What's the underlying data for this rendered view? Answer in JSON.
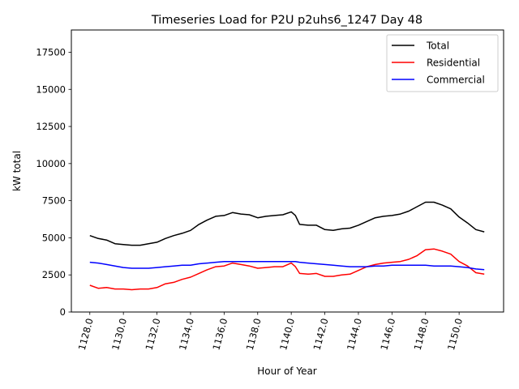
{
  "chart_data": {
    "type": "line",
    "title": "Timeseries Load for P2U p2uhs6_1247  Day 48",
    "xlabel": "Hour of Year",
    "ylabel": "kW total",
    "xlim": [
      1126.9,
      1152.65
    ],
    "ylim": [
      0,
      19000
    ],
    "grid": false,
    "legend_position": "top-right",
    "x_ticks": [
      1128,
      1130,
      1132,
      1134,
      1136,
      1138,
      1140,
      1142,
      1144,
      1146,
      1148,
      1150
    ],
    "x_tick_labels": [
      "1128.0",
      "1130.0",
      "1132.0",
      "1134.0",
      "1136.0",
      "1138.0",
      "1140.0",
      "1142.0",
      "1144.0",
      "1146.0",
      "1148.0",
      "1150.0"
    ],
    "y_ticks": [
      0,
      2500,
      5000,
      7500,
      10000,
      12500,
      15000,
      17500
    ],
    "y_tick_labels": [
      "0",
      "2500",
      "5000",
      "7500",
      "10000",
      "12500",
      "15000",
      "17500"
    ],
    "x": [
      1128.0,
      1128.5,
      1129.0,
      1129.5,
      1130.0,
      1130.5,
      1131.0,
      1131.5,
      1132.0,
      1132.5,
      1133.0,
      1133.5,
      1134.0,
      1134.5,
      1135.0,
      1135.5,
      1136.0,
      1136.5,
      1137.0,
      1137.5,
      1138.0,
      1138.5,
      1139.0,
      1139.5,
      1140.0,
      1140.25,
      1140.5,
      1141.0,
      1141.5,
      1142.0,
      1142.5,
      1143.0,
      1143.5,
      1144.0,
      1144.5,
      1145.0,
      1145.5,
      1146.0,
      1146.5,
      1147.0,
      1147.5,
      1148.0,
      1148.5,
      1149.0,
      1149.5,
      1150.0,
      1150.5,
      1151.0,
      1151.5
    ],
    "series": [
      {
        "name": "Total",
        "color": "#000000",
        "values": [
          5150,
          4950,
          4850,
          4600,
          4550,
          4500,
          4500,
          4600,
          4700,
          4950,
          5150,
          5300,
          5500,
          5900,
          6200,
          6450,
          6500,
          6700,
          6600,
          6550,
          6350,
          6450,
          6500,
          6550,
          6750,
          6500,
          5900,
          5850,
          5850,
          5550,
          5500,
          5600,
          5650,
          5850,
          6100,
          6350,
          6450,
          6500,
          6600,
          6800,
          7100,
          7400,
          7400,
          7200,
          6950,
          6400,
          6000,
          5550,
          5400
        ]
      },
      {
        "name": "Residential",
        "color": "#ff0000",
        "values": [
          1800,
          1600,
          1650,
          1550,
          1550,
          1500,
          1550,
          1550,
          1650,
          1900,
          2000,
          2200,
          2350,
          2600,
          2850,
          3050,
          3100,
          3300,
          3200,
          3100,
          2950,
          3000,
          3050,
          3050,
          3300,
          3050,
          2600,
          2550,
          2600,
          2400,
          2400,
          2500,
          2550,
          2800,
          3050,
          3200,
          3300,
          3350,
          3400,
          3550,
          3800,
          4200,
          4250,
          4100,
          3900,
          3400,
          3100,
          2650,
          2550
        ]
      },
      {
        "name": "Commercial",
        "color": "#0000ff",
        "values": [
          3350,
          3300,
          3200,
          3100,
          3000,
          2950,
          2950,
          2950,
          3000,
          3050,
          3100,
          3150,
          3150,
          3250,
          3300,
          3350,
          3400,
          3400,
          3400,
          3400,
          3400,
          3400,
          3400,
          3400,
          3400,
          3400,
          3350,
          3300,
          3250,
          3200,
          3150,
          3100,
          3050,
          3050,
          3050,
          3100,
          3100,
          3150,
          3150,
          3150,
          3150,
          3150,
          3100,
          3100,
          3100,
          3050,
          3000,
          2900,
          2850
        ]
      }
    ]
  }
}
